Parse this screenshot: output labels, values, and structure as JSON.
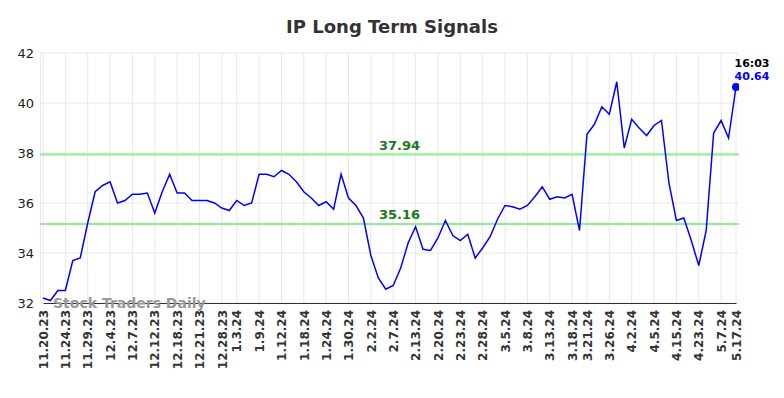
{
  "chart_data": {
    "type": "line",
    "title": "IP Long Term Signals",
    "watermark": "Stock Traders Daily",
    "time_label": "16:03",
    "color": "#0000ff",
    "grid": true,
    "categories": [
      "11.20.23",
      null,
      null,
      "11.24.23",
      null,
      null,
      "11.29.23",
      null,
      null,
      "12.4.23",
      null,
      null,
      "12.7.23",
      null,
      null,
      "12.12.23",
      null,
      null,
      "12.18.23",
      null,
      null,
      "12.21.23",
      null,
      null,
      "12.28.23",
      null,
      "1.3.24",
      null,
      null,
      "1.9.24",
      null,
      null,
      "1.12.24",
      null,
      null,
      "1.18.24",
      null,
      null,
      "1.24.24",
      null,
      null,
      "1.30.24",
      null,
      null,
      "2.2.24",
      null,
      null,
      "2.7.24",
      null,
      null,
      "2.13.24",
      null,
      null,
      "2.20.24",
      null,
      null,
      "2.23.24",
      null,
      null,
      "2.28.24",
      null,
      null,
      "3.5.24",
      null,
      null,
      "3.8.24",
      null,
      null,
      "3.13.24",
      null,
      null,
      "3.18.24",
      null,
      "3.21.24",
      null,
      null,
      "3.26.24",
      null,
      null,
      "4.2.24",
      null,
      null,
      "4.5.24",
      null,
      null,
      "4.15.24",
      null,
      null,
      "4.23.24",
      null,
      null,
      "5.7.24",
      null,
      "5.17.24"
    ],
    "values": [
      32.2,
      32.1,
      32.5,
      32.5,
      33.7,
      33.8,
      35.2,
      36.45,
      36.7,
      36.85,
      36.0,
      36.1,
      36.35,
      36.35,
      36.4,
      35.6,
      36.45,
      37.15,
      36.4,
      36.4,
      36.1,
      36.1,
      36.1,
      36.0,
      35.8,
      35.7,
      36.1,
      35.9,
      36.0,
      37.15,
      37.15,
      37.05,
      37.3,
      37.15,
      36.85,
      36.45,
      36.2,
      35.9,
      36.05,
      35.75,
      37.15,
      36.2,
      35.9,
      35.4,
      33.9,
      33.0,
      32.55,
      32.7,
      33.4,
      34.4,
      35.05,
      34.15,
      34.1,
      34.6,
      35.3,
      34.7,
      34.5,
      34.75,
      33.8,
      34.2,
      34.65,
      35.35,
      35.9,
      35.85,
      35.75,
      35.9,
      36.25,
      36.65,
      36.15,
      36.25,
      36.2,
      36.35,
      34.9,
      38.75,
      39.15,
      39.85,
      39.55,
      40.85,
      38.2,
      39.35,
      39.0,
      38.7,
      39.1,
      39.3,
      36.8,
      35.3,
      35.4,
      34.5,
      33.5,
      34.9,
      38.8,
      39.3,
      38.6,
      40.64
    ],
    "hlines": [
      {
        "value": 37.94,
        "color": "#90ee90"
      },
      {
        "value": 35.16,
        "color": "#90ee90"
      }
    ],
    "ylim": [
      32,
      42
    ],
    "yticks": [
      32,
      34,
      36,
      38,
      40,
      42
    ]
  }
}
